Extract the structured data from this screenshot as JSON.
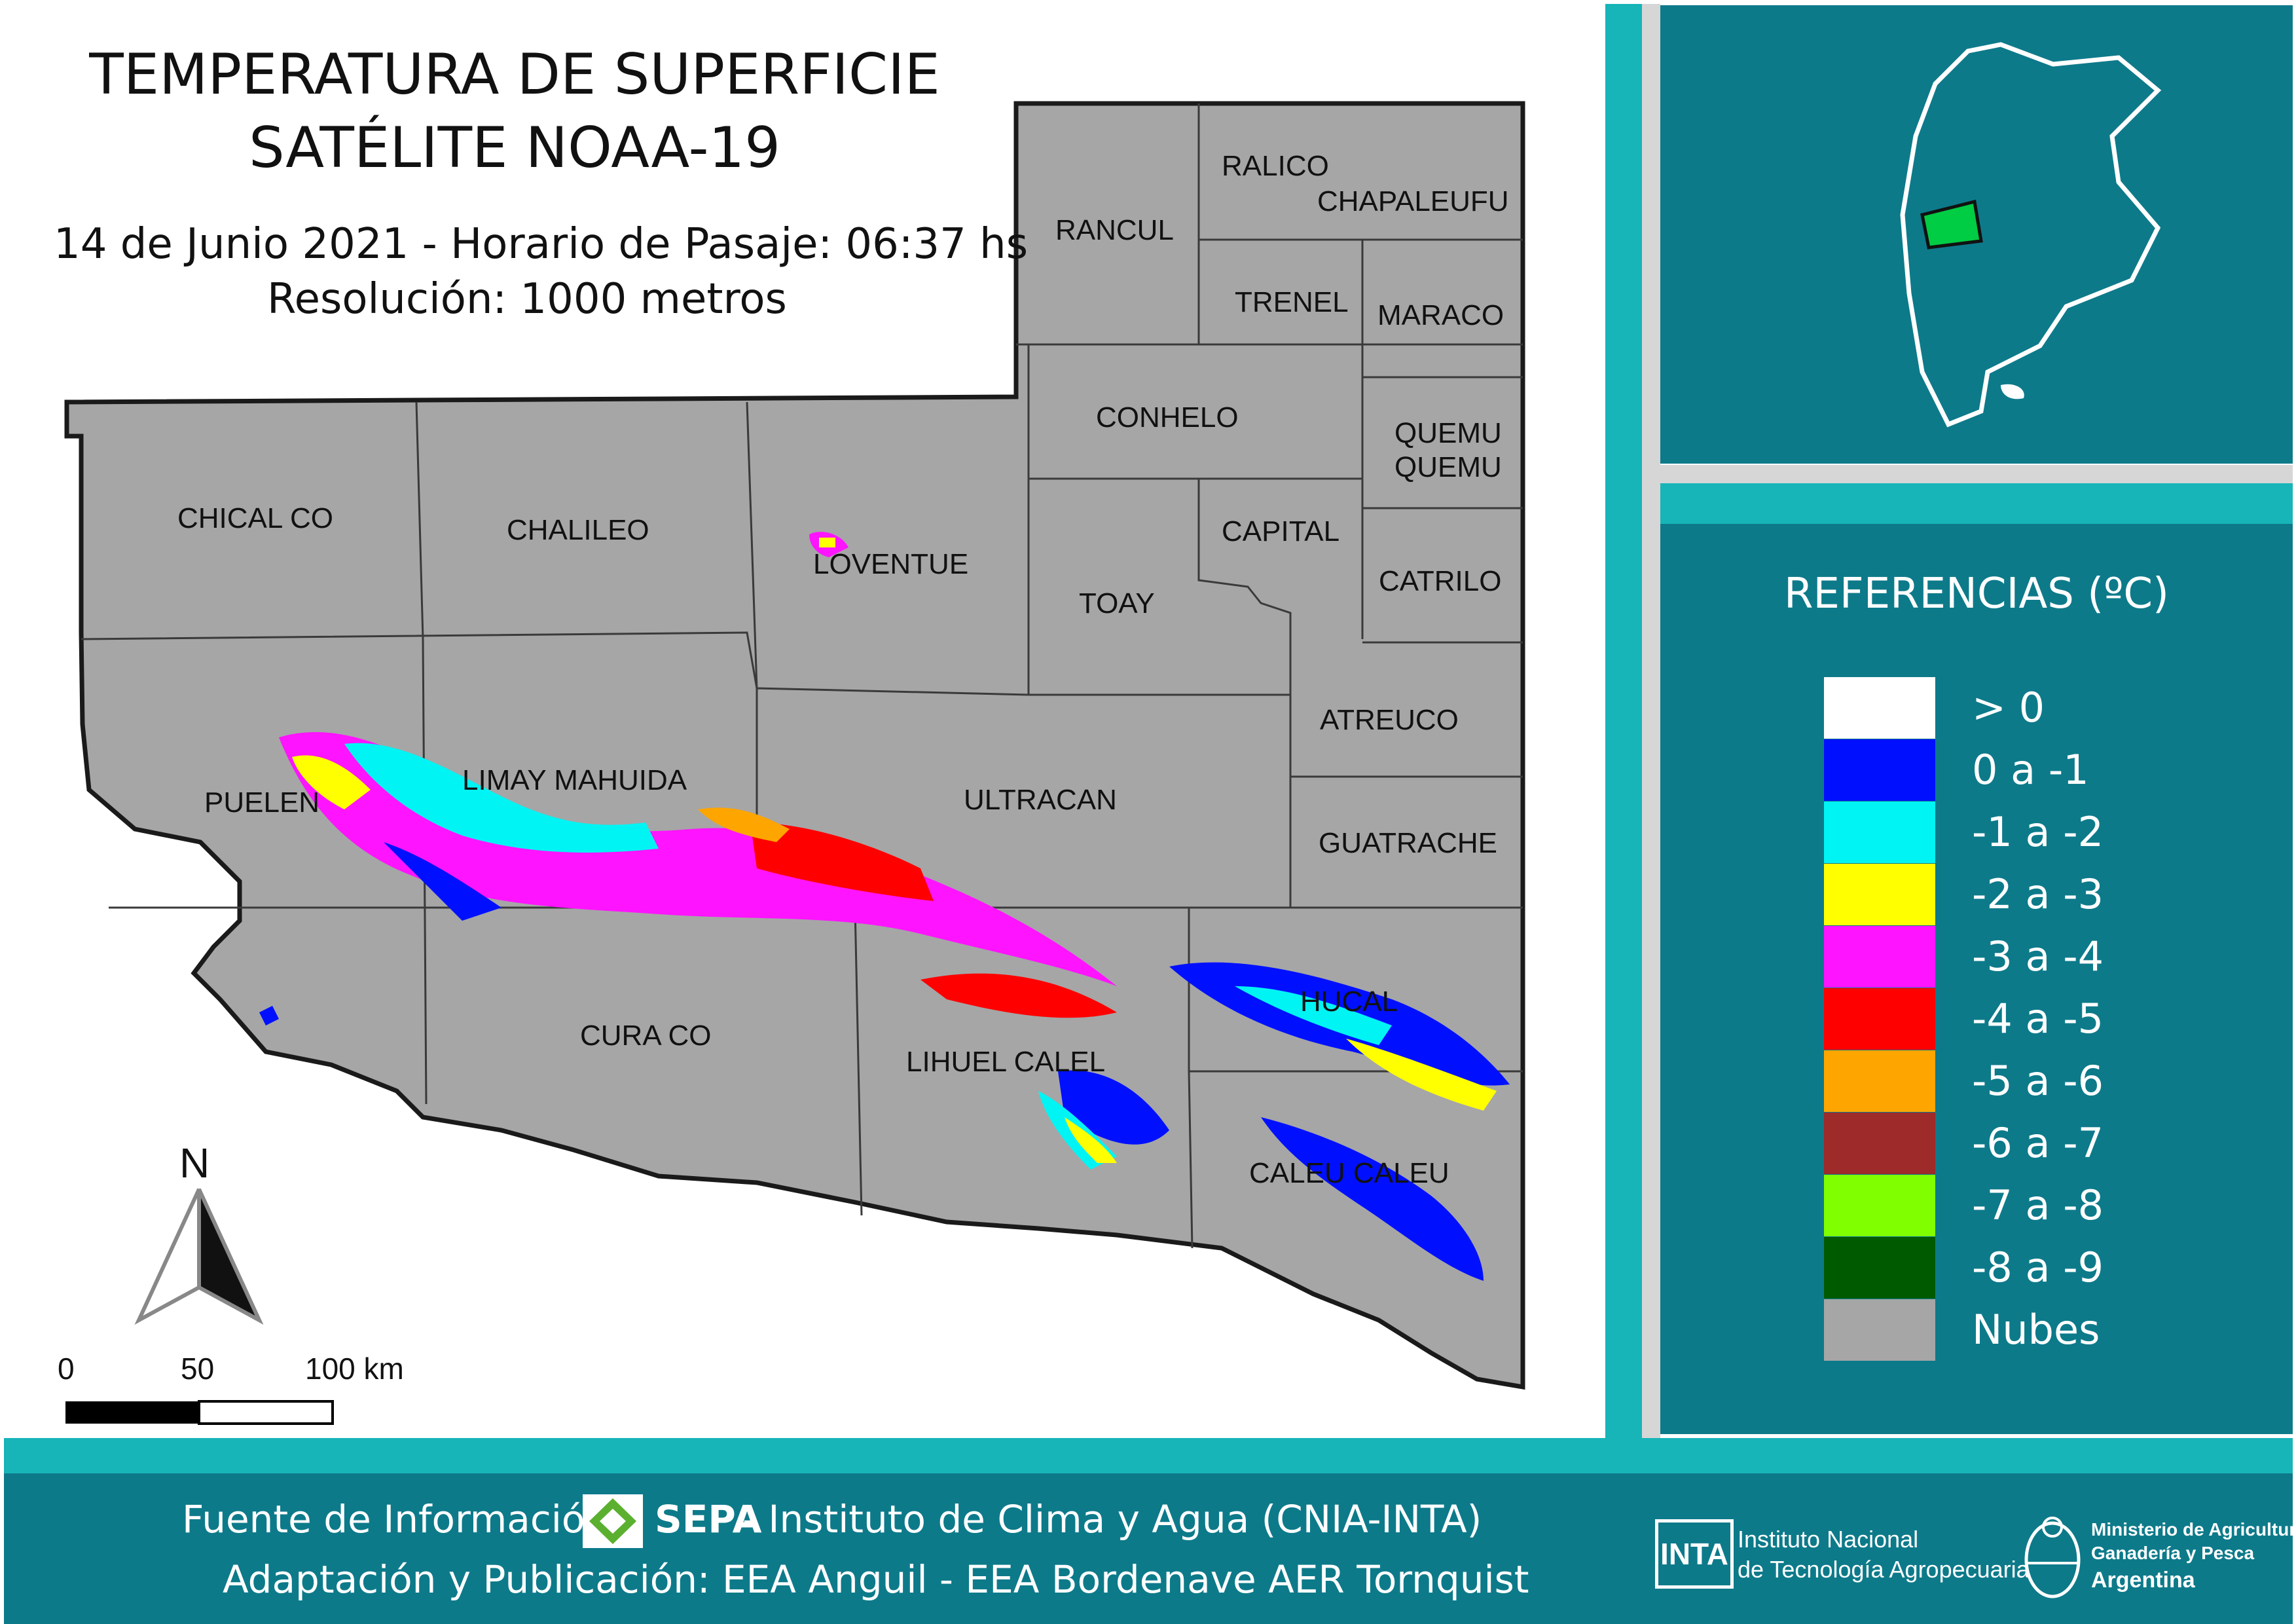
{
  "title": {
    "line1": "TEMPERATURA DE SUPERFICIE",
    "line2": "SATÉLITE NOAA-19",
    "date_line": "14 de Junio 2021 - Horario de Pasaje: 06:37 hs",
    "resolution_line": "Resolución: 1000 metros"
  },
  "departments": {
    "chical_co": "CHICAL CO",
    "chalileo": "CHALILEO",
    "loventue": "LOVENTUE",
    "rancul": "RANCUL",
    "ralico": "RALICO",
    "chapaleufu": "CHAPALEUFU",
    "trenel": "TRENEL",
    "maraco": "MARACO",
    "conhelo": "CONHELO",
    "quemu_1": "QUEMU",
    "quemu_2": "QUEMU",
    "capital": "CAPITAL",
    "toay": "TOAY",
    "catrilo": "CATRILO",
    "atreuco": "ATREUCO",
    "puelen": "PUELEN",
    "limay_mahuida": "LIMAY MAHUIDA",
    "ultracan": "ULTRACAN",
    "guatrache": "GUATRACHE",
    "hucal": "HUCAL",
    "cura_co": "CURA CO",
    "lihuel_calel": "LIHUEL CALEL",
    "caleu_caleu": "CALEU CALEU"
  },
  "north_arrow": {
    "label": "N"
  },
  "scale_bar": {
    "tick_0": "0",
    "tick_50": "50",
    "tick_100": "100 km"
  },
  "legend": {
    "title": "REFERENCIAS (ºC)",
    "items": [
      {
        "label": "> 0",
        "color": "#ffffff"
      },
      {
        "label": "0 a -1",
        "color": "#0010ff"
      },
      {
        "label": "-1 a -2",
        "color": "#00f4f4"
      },
      {
        "label": "-2 a -3",
        "color": "#ffff00"
      },
      {
        "label": "-3 a -4",
        "color": "#ff14ff"
      },
      {
        "label": "-4 a -5",
        "color": "#ff0000"
      },
      {
        "label": "-5 a -6",
        "color": "#ffa500"
      },
      {
        "label": "-6 a -7",
        "color": "#9e2a2a"
      },
      {
        "label": "-7 a -8",
        "color": "#80ff00"
      },
      {
        "label": "-8 a -9",
        "color": "#005a00"
      },
      {
        "label": "Nubes",
        "color": "#a6a6a6"
      }
    ]
  },
  "footer": {
    "source_prefix": "Fuente de Información",
    "source_org": "SEPA",
    "source_rest": " - Instituto de Clima y Agua (CNIA-INTA)",
    "adaptation": "Adaptación y Publicación: EEA Anguil - EEA Bordenave AER Tornquist",
    "inta_logo_text": "INTA",
    "inta_line1": "Instituto Nacional",
    "inta_line2": "de Tecnología Agropecuaria",
    "ministry_line1": "Ministerio de Agricultura,",
    "ministry_line2": "Ganadería y Pesca",
    "ministry_line3": "Argentina"
  },
  "colors": {
    "panel_teal": "#0d7a8a",
    "accent_teal": "#17b4b8",
    "cloud_gray": "#a6a6a6",
    "locator_highlight": "#00cc44"
  }
}
